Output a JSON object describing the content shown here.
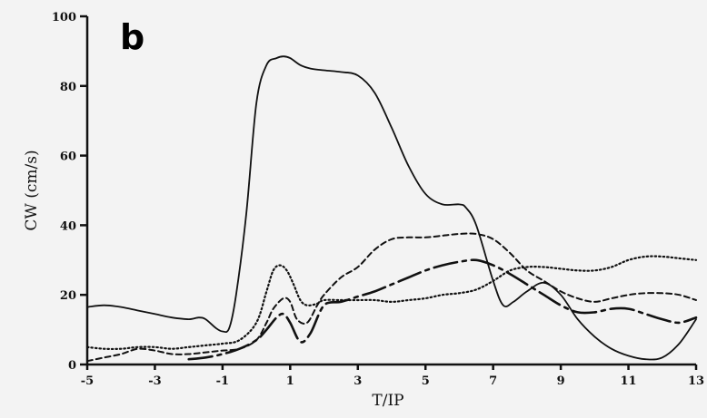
{
  "chart_data": {
    "type": "line",
    "panel_label": "b",
    "xlabel": "T/IP",
    "ylabel": "CW (cm/s)",
    "xlim": [
      -5,
      13
    ],
    "ylim": [
      0,
      100
    ],
    "xticks": [
      -5,
      -3,
      -1,
      1,
      3,
      5,
      7,
      9,
      11,
      13
    ],
    "xtick_labels": [
      "-5",
      "-3",
      "-1",
      "1",
      "3",
      "5",
      "7",
      "9",
      "11",
      "13"
    ],
    "yticks": [
      0,
      20,
      40,
      60,
      80,
      100
    ],
    "ytick_labels": [
      "0",
      "20",
      "40",
      "60",
      "80",
      "100"
    ],
    "grid": false,
    "legend": "none",
    "series": [
      {
        "style": "solid",
        "x": [
          -5,
          -4.5,
          -4,
          -3.5,
          -3,
          -2.5,
          -2,
          -1.7,
          -1.5,
          -1.2,
          -1,
          -0.8,
          -0.6,
          -0.3,
          0,
          0.3,
          0.6,
          0.8,
          1,
          1.3,
          1.6,
          2,
          2.5,
          3,
          3.5,
          4,
          4.5,
          5,
          5.5,
          6,
          6.2,
          6.5,
          7,
          7.3,
          7.6,
          8,
          8.5,
          9,
          9.5,
          10,
          10.5,
          11,
          11.5,
          12,
          12.5,
          13
        ],
        "y": [
          16.5,
          17,
          16.5,
          15.5,
          14.5,
          13.5,
          13,
          13.5,
          13,
          10.5,
          9.5,
          10.5,
          20,
          43,
          75,
          86,
          88,
          88.5,
          88,
          86,
          85,
          84.5,
          84,
          83,
          78,
          68,
          57,
          49,
          46,
          46,
          45,
          40,
          24,
          17,
          18,
          21,
          23.5,
          20,
          13,
          8,
          4.5,
          2.5,
          1.5,
          2,
          6,
          13
        ]
      },
      {
        "style": "dashed",
        "x": [
          -5,
          -4.5,
          -4,
          -3.5,
          -3,
          -2.5,
          -2,
          -1.5,
          -1,
          -0.5,
          0,
          0.3,
          0.5,
          0.8,
          1,
          1.2,
          1.5,
          1.8,
          2,
          2.5,
          3,
          3.5,
          4,
          4.5,
          5,
          5.5,
          6,
          6.5,
          7,
          7.5,
          8,
          8.5,
          9,
          9.5,
          10,
          10.5,
          11,
          11.5,
          12,
          12.5,
          13
        ],
        "y": [
          1,
          2,
          3,
          4.5,
          4,
          3,
          3,
          3.5,
          4,
          4.5,
          7,
          12,
          16,
          19,
          18,
          13,
          12,
          17,
          20,
          25,
          28,
          33,
          36,
          36.5,
          36.5,
          37,
          37.5,
          37.5,
          36,
          32,
          27,
          24,
          21,
          19,
          18,
          19,
          20,
          20.5,
          20.5,
          20,
          18.5
        ]
      },
      {
        "style": "dotted",
        "x": [
          -5,
          -4.5,
          -4,
          -3.5,
          -3,
          -2.5,
          -2,
          -1.5,
          -1,
          -0.5,
          0,
          0.3,
          0.5,
          0.7,
          0.9,
          1.1,
          1.3,
          1.5,
          1.8,
          2,
          2.5,
          3,
          3.5,
          4,
          4.5,
          5,
          5.5,
          6,
          6.5,
          7,
          7.5,
          8,
          8.5,
          9,
          9.5,
          10,
          10.5,
          11,
          11.5,
          12,
          12.5,
          13
        ],
        "y": [
          5,
          4.5,
          4.5,
          5,
          5,
          4.5,
          5,
          5.5,
          6,
          7,
          12,
          21,
          27,
          28.5,
          27,
          23,
          18.5,
          17,
          17.5,
          18.5,
          18.5,
          18.5,
          18.5,
          18,
          18.5,
          19,
          20,
          20.5,
          21.5,
          24,
          27,
          28,
          28,
          27.5,
          27,
          27,
          28,
          30,
          31,
          31,
          30.5,
          30
        ]
      },
      {
        "style": "long-dash",
        "x": [
          -2,
          -1.5,
          -1,
          -0.5,
          0,
          0.3,
          0.6,
          0.8,
          1,
          1.3,
          1.6,
          2,
          2.5,
          3,
          3.5,
          4,
          4.5,
          5,
          5.5,
          6,
          6.5,
          7,
          7.5,
          8,
          8.5,
          9,
          9.5,
          10,
          10.5,
          11,
          11.5,
          12,
          12.5,
          13
        ],
        "y": [
          1.5,
          2,
          3,
          4.5,
          7,
          10,
          13.5,
          14.5,
          12,
          6.5,
          9,
          17,
          18,
          19.5,
          21,
          23,
          25,
          27,
          28.5,
          29.5,
          30,
          28.5,
          26,
          23,
          20,
          17,
          15,
          15,
          16,
          16,
          14.5,
          13,
          12,
          13.5
        ]
      }
    ]
  }
}
